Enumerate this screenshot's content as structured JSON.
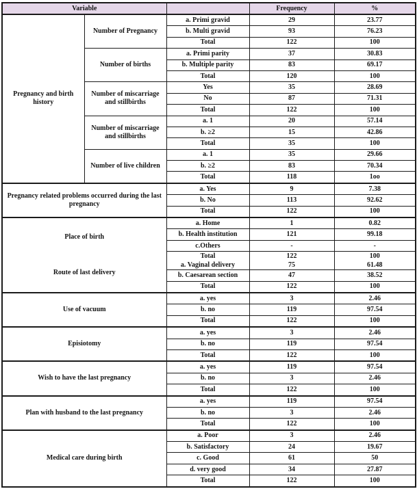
{
  "colors": {
    "header_bg": "#e5d7e9",
    "border": "#1a1a1a",
    "text": "#141414"
  },
  "table": {
    "header": {
      "variable": "Variable",
      "category": "",
      "frequency": "Frequency",
      "percent": "%"
    },
    "sections": [
      {
        "group": "Pregnancy and birth history",
        "subgroups": [
          {
            "label": "Number of Pregnancy",
            "rows": [
              [
                "a. Primi gravid",
                "29",
                "23.77"
              ],
              [
                "b. Multi gravid",
                "93",
                "76.23"
              ],
              [
                "Total",
                "122",
                "100"
              ]
            ]
          },
          {
            "label": "Number of births",
            "rows": [
              [
                "a. Primi parity",
                "37",
                "30.83"
              ],
              [
                "b. Multiple parity",
                "83",
                "69.17"
              ],
              [
                "Total",
                "120",
                "100"
              ]
            ]
          },
          {
            "label": "Number of miscarriage and stillbirths",
            "rows": [
              [
                "Yes",
                "35",
                "28.69"
              ],
              [
                "No",
                "87",
                "71.31"
              ],
              [
                "Total",
                "122",
                "100"
              ]
            ]
          },
          {
            "label": "Number of miscarriage and stillbirths",
            "rows": [
              [
                "a. 1",
                "20",
                "57.14"
              ],
              [
                "b. ≥2",
                "15",
                "42.86"
              ],
              [
                "Total",
                "35",
                "100"
              ]
            ]
          },
          {
            "label": "Number of live children",
            "rows": [
              [
                "a. 1",
                "35",
                "29.66"
              ],
              [
                "b. ≥2",
                "83",
                "70.34"
              ],
              [
                "Total",
                "118",
                "1oo"
              ]
            ]
          }
        ]
      },
      {
        "group": "Pregnancy related problems occurred during the last pregnancy",
        "rows": [
          [
            "a. Yes",
            "9",
            "7.38"
          ],
          [
            "b. No",
            "113",
            "92.62"
          ],
          [
            "Total",
            "122",
            "100"
          ]
        ]
      },
      {
        "groups": [
          "Place of birth",
          "Route of last delivery"
        ],
        "rows": [
          [
            "a. Home",
            "1",
            "0.82"
          ],
          [
            "b. Health institution",
            "121",
            "99.18"
          ],
          [
            "c.Others",
            "-",
            "-"
          ],
          [
            [
              "Total",
              "a. Vaginal delivery"
            ],
            [
              "122",
              "75"
            ],
            [
              "100",
              "61.48"
            ]
          ],
          [
            "b. Caesarean section",
            "47",
            "38.52"
          ],
          [
            "Total",
            "122",
            "100"
          ]
        ]
      },
      {
        "group": "Use of vacuum",
        "rows": [
          [
            "a. yes",
            "3",
            "2.46"
          ],
          [
            "b. no",
            "119",
            "97.54"
          ],
          [
            "Total",
            "122",
            "100"
          ]
        ]
      },
      {
        "group": "Episiotomy",
        "rows": [
          [
            "a. yes",
            "3",
            "2.46"
          ],
          [
            "b. no",
            "119",
            "97.54"
          ],
          [
            "Total",
            "122",
            "100"
          ]
        ]
      },
      {
        "group": "Wish to have  the last pregnancy",
        "rows": [
          [
            "a. yes",
            "119",
            "97.54"
          ],
          [
            "b. no",
            "3",
            "2.46"
          ],
          [
            "Total",
            "122",
            "100"
          ]
        ]
      },
      {
        "group": "Plan with husband to the last pregnancy",
        "rows": [
          [
            "a. yes",
            "119",
            "97.54"
          ],
          [
            "b. no",
            "3",
            "2.46"
          ],
          [
            "Total",
            "122",
            "100"
          ]
        ]
      },
      {
        "group": "Medical care during birth",
        "rows": [
          [
            "a. Poor",
            "3",
            "2.46"
          ],
          [
            "b. Satisfactory",
            "24",
            "19.67"
          ],
          [
            "c. Good",
            "61",
            "50"
          ],
          [
            "d. very good",
            "34",
            "27.87"
          ],
          [
            "Total",
            "122",
            "100"
          ]
        ]
      }
    ]
  }
}
